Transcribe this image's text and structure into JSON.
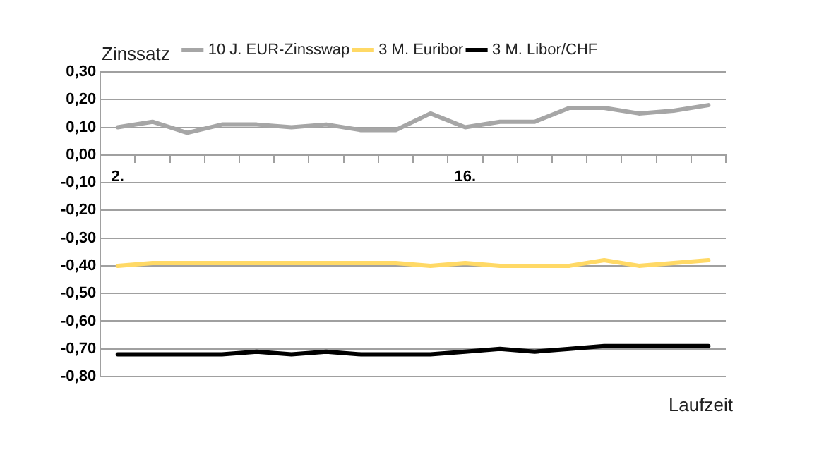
{
  "chart_data": {
    "type": "line",
    "ylabel": "Zinssatz",
    "xlabel": "Laufzeit",
    "categories": [
      "2.",
      null,
      null,
      null,
      null,
      null,
      null,
      null,
      null,
      null,
      "16.",
      null,
      null,
      null,
      null,
      null,
      null,
      null
    ],
    "series": [
      {
        "name": "10 J. EUR-Zinsswap",
        "color": "#a6a6a6",
        "values": [
          0.1,
          0.12,
          0.08,
          0.11,
          0.11,
          0.1,
          0.11,
          0.09,
          0.09,
          0.15,
          0.1,
          0.12,
          0.12,
          0.17,
          0.17,
          0.15,
          0.16,
          0.18
        ]
      },
      {
        "name": "3 M. Euribor",
        "color": "#ffd966",
        "values": [
          -0.4,
          -0.39,
          -0.39,
          -0.39,
          -0.39,
          -0.39,
          -0.39,
          -0.39,
          -0.39,
          -0.4,
          -0.39,
          -0.4,
          -0.4,
          -0.4,
          -0.38,
          -0.4,
          -0.39,
          -0.38
        ]
      },
      {
        "name": "3 M. Libor/CHF",
        "color": "#000000",
        "values": [
          -0.72,
          -0.72,
          -0.72,
          -0.72,
          -0.71,
          -0.72,
          -0.71,
          -0.72,
          -0.72,
          -0.72,
          -0.71,
          -0.7,
          -0.71,
          -0.7,
          -0.69,
          -0.69,
          -0.69,
          -0.69
        ]
      }
    ],
    "ylim": [
      -0.8,
      0.3
    ],
    "yticks": [
      {
        "value": 0.3,
        "label": "0,30"
      },
      {
        "value": 0.2,
        "label": "0,20"
      },
      {
        "value": 0.1,
        "label": "0,10"
      },
      {
        "value": 0,
        "label": "0,00"
      },
      {
        "value": -0.1,
        "label": "-0,10"
      },
      {
        "value": -0.2,
        "label": "-0,20"
      },
      {
        "value": -0.3,
        "label": "-0,30"
      },
      {
        "value": -0.4,
        "label": "-0,40"
      },
      {
        "value": -0.5,
        "label": "-0,50"
      },
      {
        "value": -0.6,
        "label": "-0,60"
      },
      {
        "value": -0.7,
        "label": "-0,70"
      },
      {
        "value": -0.8,
        "label": "-0,80"
      }
    ],
    "grid": "y",
    "legend": "top",
    "marker": "none",
    "line_style": "solid"
  }
}
